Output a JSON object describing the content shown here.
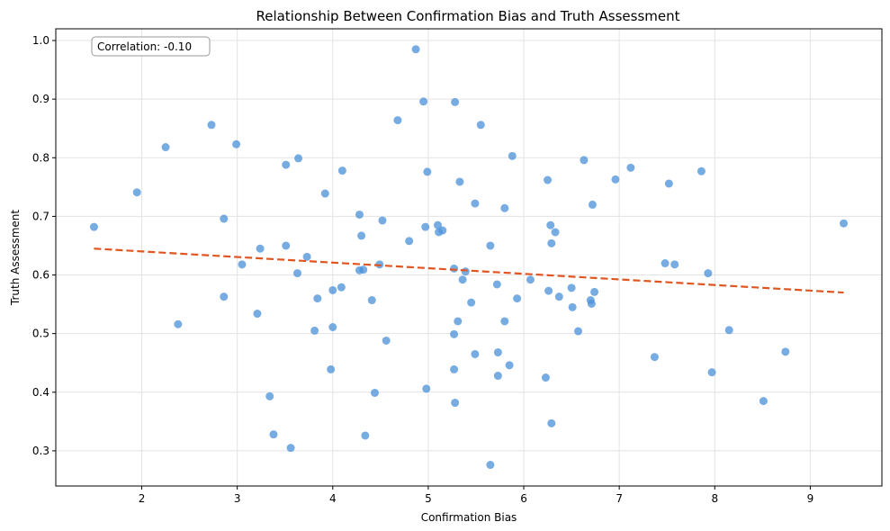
{
  "chart_data": {
    "type": "scatter",
    "title": "Relationship Between Confirmation Bias and Truth Assessment",
    "xlabel": "Confirmation Bias",
    "ylabel": "Truth Assessment",
    "xlim": [
      1.1,
      9.75
    ],
    "ylim": [
      0.24,
      1.02
    ],
    "xticks": [
      2,
      3,
      4,
      5,
      6,
      7,
      8,
      9
    ],
    "yticks": [
      0.3,
      0.4,
      0.5,
      0.6,
      0.7,
      0.8,
      0.9,
      1.0
    ],
    "grid": true,
    "annotation": "Correlation: -0.10",
    "point_color": "#4a90d9",
    "trend_color": "#e05520",
    "trendline": {
      "x": [
        1.5,
        9.35
      ],
      "y": [
        0.645,
        0.57
      ]
    },
    "points": [
      [
        1.5,
        0.682
      ],
      [
        1.95,
        0.741
      ],
      [
        2.25,
        0.818
      ],
      [
        2.38,
        0.516
      ],
      [
        2.73,
        0.856
      ],
      [
        2.86,
        0.696
      ],
      [
        2.86,
        0.563
      ],
      [
        2.99,
        0.823
      ],
      [
        3.05,
        0.618
      ],
      [
        3.21,
        0.534
      ],
      [
        3.24,
        0.645
      ],
      [
        3.34,
        0.393
      ],
      [
        3.38,
        0.328
      ],
      [
        3.51,
        0.788
      ],
      [
        3.51,
        0.65
      ],
      [
        3.56,
        0.305
      ],
      [
        3.63,
        0.603
      ],
      [
        3.64,
        0.799
      ],
      [
        3.73,
        0.631
      ],
      [
        3.81,
        0.505
      ],
      [
        3.84,
        0.56
      ],
      [
        3.92,
        0.739
      ],
      [
        3.98,
        0.439
      ],
      [
        4.0,
        0.574
      ],
      [
        4.0,
        0.511
      ],
      [
        4.09,
        0.579
      ],
      [
        4.1,
        0.778
      ],
      [
        4.28,
        0.703
      ],
      [
        4.28,
        0.608
      ],
      [
        4.3,
        0.667
      ],
      [
        4.32,
        0.609
      ],
      [
        4.34,
        0.326
      ],
      [
        4.41,
        0.557
      ],
      [
        4.44,
        0.399
      ],
      [
        4.49,
        0.618
      ],
      [
        4.52,
        0.693
      ],
      [
        4.56,
        0.488
      ],
      [
        4.68,
        0.864
      ],
      [
        4.8,
        0.658
      ],
      [
        4.87,
        0.985
      ],
      [
        4.95,
        0.896
      ],
      [
        4.97,
        0.682
      ],
      [
        4.98,
        0.406
      ],
      [
        4.99,
        0.776
      ],
      [
        5.1,
        0.685
      ],
      [
        5.11,
        0.673
      ],
      [
        5.15,
        0.676
      ],
      [
        5.27,
        0.611
      ],
      [
        5.27,
        0.499
      ],
      [
        5.27,
        0.439
      ],
      [
        5.28,
        0.382
      ],
      [
        5.28,
        0.895
      ],
      [
        5.31,
        0.521
      ],
      [
        5.33,
        0.759
      ],
      [
        5.36,
        0.592
      ],
      [
        5.39,
        0.606
      ],
      [
        5.45,
        0.553
      ],
      [
        5.49,
        0.722
      ],
      [
        5.49,
        0.465
      ],
      [
        5.55,
        0.856
      ],
      [
        5.65,
        0.65
      ],
      [
        5.65,
        0.276
      ],
      [
        5.72,
        0.584
      ],
      [
        5.73,
        0.468
      ],
      [
        5.73,
        0.428
      ],
      [
        5.8,
        0.714
      ],
      [
        5.8,
        0.521
      ],
      [
        5.85,
        0.446
      ],
      [
        5.88,
        0.803
      ],
      [
        5.93,
        0.56
      ],
      [
        6.07,
        0.592
      ],
      [
        6.23,
        0.425
      ],
      [
        6.25,
        0.762
      ],
      [
        6.26,
        0.573
      ],
      [
        6.28,
        0.685
      ],
      [
        6.29,
        0.654
      ],
      [
        6.29,
        0.347
      ],
      [
        6.33,
        0.673
      ],
      [
        6.37,
        0.563
      ],
      [
        6.5,
        0.578
      ],
      [
        6.51,
        0.545
      ],
      [
        6.57,
        0.504
      ],
      [
        6.63,
        0.796
      ],
      [
        6.7,
        0.557
      ],
      [
        6.71,
        0.551
      ],
      [
        6.72,
        0.72
      ],
      [
        6.74,
        0.571
      ],
      [
        6.96,
        0.763
      ],
      [
        7.12,
        0.783
      ],
      [
        7.37,
        0.46
      ],
      [
        7.48,
        0.62
      ],
      [
        7.52,
        0.756
      ],
      [
        7.58,
        0.618
      ],
      [
        7.86,
        0.777
      ],
      [
        7.93,
        0.603
      ],
      [
        7.97,
        0.434
      ],
      [
        8.15,
        0.506
      ],
      [
        8.51,
        0.385
      ],
      [
        8.74,
        0.469
      ],
      [
        9.35,
        0.688
      ]
    ]
  }
}
